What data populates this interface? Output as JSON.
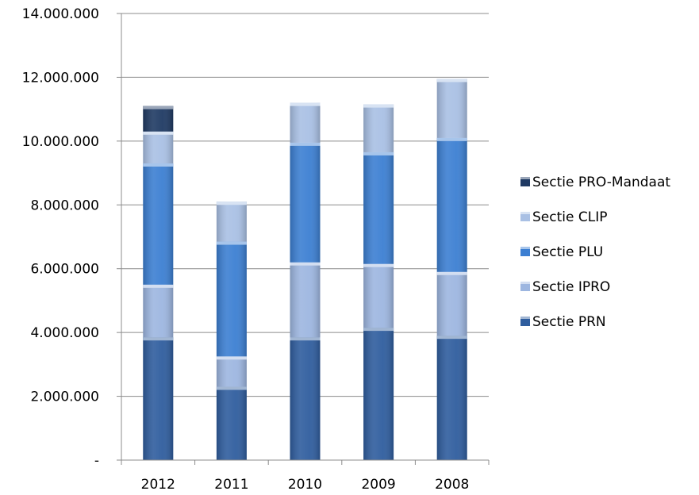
{
  "chart_data": {
    "type": "bar",
    "stacked": true,
    "categories": [
      "2012",
      "2011",
      "2010",
      "2009",
      "2008"
    ],
    "series": [
      {
        "name": "Sectie PRN",
        "values": [
          3850000,
          2300000,
          3850000,
          4150000,
          3900000
        ],
        "color": "#2f5d9e"
      },
      {
        "name": "Sectie IPRO",
        "values": [
          1650000,
          950000,
          2350000,
          2000000,
          2000000
        ],
        "color": "#9db6e0"
      },
      {
        "name": "Sectie PLU",
        "values": [
          3800000,
          3600000,
          3750000,
          3500000,
          4200000
        ],
        "color": "#3c7fd2"
      },
      {
        "name": "Sectie CLIP",
        "values": [
          1000000,
          1250000,
          1250000,
          1500000,
          1850000
        ],
        "color": "#a9c0e4"
      },
      {
        "name": "Sectie PRO-Mandaat",
        "values": [
          800000,
          0,
          0,
          0,
          0
        ],
        "color": "#1f3a63"
      }
    ],
    "legend_order": [
      "Sectie PRO-Mandaat",
      "Sectie CLIP",
      "Sectie PLU",
      "Sectie IPRO",
      "Sectie PRN"
    ],
    "y_ticks": [
      0,
      2000000,
      4000000,
      6000000,
      8000000,
      10000000,
      12000000,
      14000000
    ],
    "y_tick_labels": [
      "-",
      "2.000.000",
      "4.000.000",
      "6.000.000",
      "8.000.000",
      "10.000.000",
      "12.000.000",
      "14.000.000"
    ],
    "ylim": [
      0,
      14000000
    ],
    "grid": true,
    "legend_position": "right"
  }
}
